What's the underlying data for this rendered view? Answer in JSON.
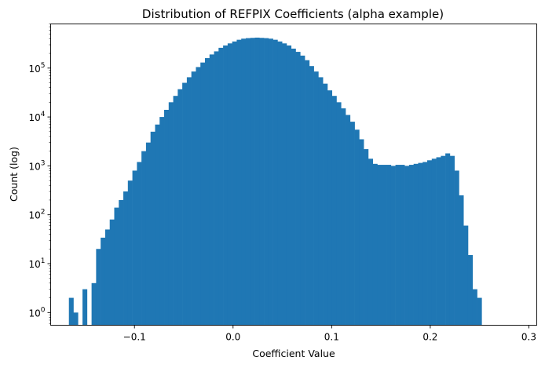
{
  "chart_data": {
    "type": "bar",
    "title": "Distribution of REFPIX Coefficients (alpha example)",
    "xlabel": "Coefficient Value",
    "ylabel": "Count (log)",
    "xlim": [
      -0.185,
      0.308
    ],
    "ylim": [
      0.55,
      800000
    ],
    "yscale": "log",
    "grid": false,
    "color": "#1f77b4",
    "xticks": [
      {
        "value": -0.1,
        "label": "−0.1"
      },
      {
        "value": 0.0,
        "label": "0.0"
      },
      {
        "value": 0.1,
        "label": "0.1"
      },
      {
        "value": 0.2,
        "label": "0.2"
      },
      {
        "value": 0.3,
        "label": "0.3"
      }
    ],
    "yticks": [
      {
        "value": 1,
        "base": "10",
        "exp": "0"
      },
      {
        "value": 10,
        "base": "10",
        "exp": "1"
      },
      {
        "value": 100,
        "base": "10",
        "exp": "2"
      },
      {
        "value": 1000,
        "base": "10",
        "exp": "3"
      },
      {
        "value": 10000,
        "base": "10",
        "exp": "4"
      },
      {
        "value": 100000,
        "base": "10",
        "exp": "5"
      }
    ],
    "bin_start": -0.1665,
    "bin_width": 0.0046,
    "counts": [
      2,
      1,
      0,
      3,
      0,
      4,
      20,
      34,
      50,
      80,
      140,
      200,
      300,
      500,
      800,
      1200,
      2000,
      3000,
      5000,
      7000,
      10000,
      14000,
      20000,
      27000,
      37000,
      50000,
      65000,
      85000,
      105000,
      130000,
      160000,
      190000,
      220000,
      260000,
      290000,
      320000,
      350000,
      380000,
      400000,
      410000,
      415000,
      420000,
      415000,
      410000,
      400000,
      380000,
      350000,
      320000,
      290000,
      250000,
      215000,
      180000,
      145000,
      110000,
      85000,
      65000,
      48000,
      35000,
      27000,
      20000,
      15000,
      11000,
      8000,
      5500,
      3500,
      2200,
      1400,
      1100,
      1050,
      1050,
      1050,
      1000,
      1050,
      1050,
      1000,
      1050,
      1100,
      1150,
      1200,
      1300,
      1400,
      1500,
      1600,
      1800,
      1600,
      800,
      250,
      60,
      15,
      3,
      2
    ]
  }
}
